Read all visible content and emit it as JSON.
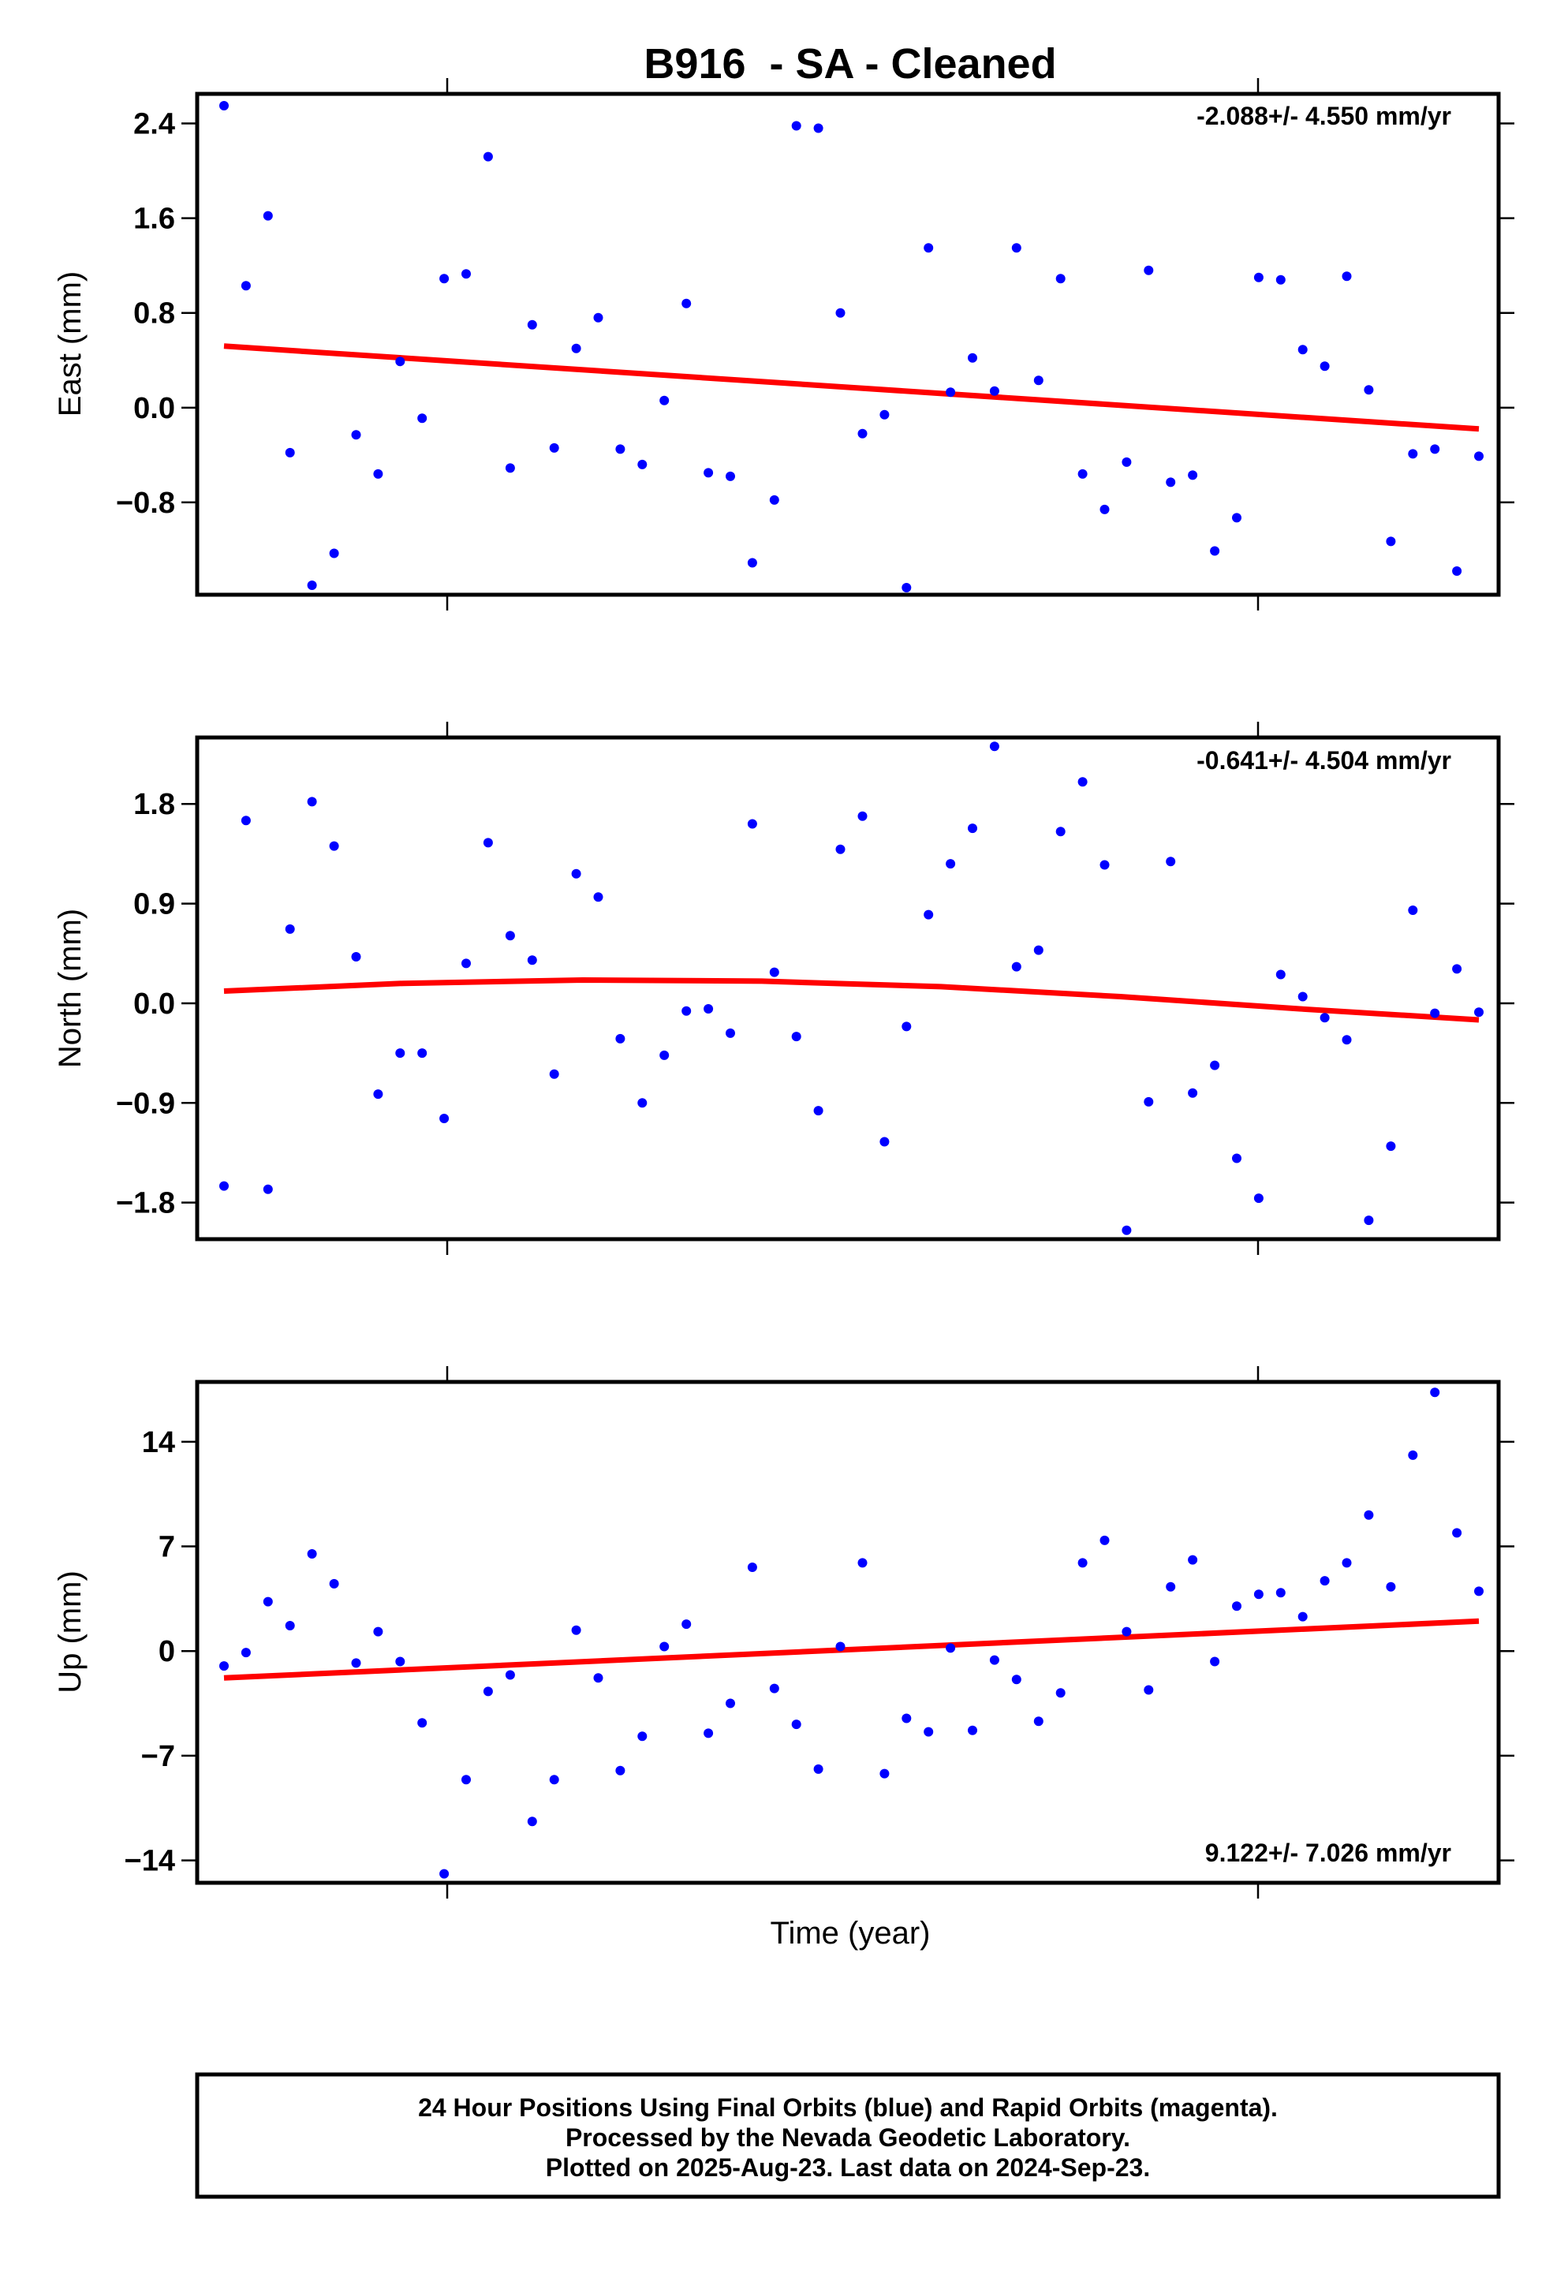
{
  "chart_data": {
    "type": "scatter",
    "title": "B916  - SA - Cleaned",
    "xlabel": "Time (year)",
    "panels": [
      {
        "name": "east",
        "ylabel": "East (mm)",
        "ylim": [
          -1.58,
          2.65
        ],
        "yticks": [
          2.4,
          1.6,
          0.8,
          0.0,
          -0.8
        ],
        "ytick_labels": [
          "2.4",
          "1.6",
          "0.8",
          "0.0",
          "−0.8"
        ],
        "rate_label": "-2.088+/- 4.550 mm/yr",
        "rate_position": "top-right",
        "points": [
          2.55,
          1.03,
          1.62,
          -0.38,
          -1.5,
          -1.23,
          -0.23,
          -0.56,
          0.39,
          -0.09,
          1.09,
          1.13,
          2.12,
          -0.51,
          0.7,
          -0.34,
          0.5,
          0.76,
          -0.35,
          -0.48,
          0.06,
          0.88,
          -0.55,
          -0.58,
          -1.31,
          -0.78,
          2.38,
          2.36,
          0.8,
          -0.22,
          -0.06,
          -1.52,
          1.35,
          0.13,
          0.42,
          0.14,
          1.35,
          0.23,
          1.09,
          -0.56,
          -0.86,
          -0.46,
          1.16,
          -0.63,
          -0.57,
          -1.21,
          -0.93,
          1.1,
          1.08,
          0.49,
          0.35,
          1.11,
          0.15,
          -1.13,
          -0.39,
          -0.35,
          -1.38,
          -0.41
        ],
        "trend": [
          0.52,
          -0.18
        ]
      },
      {
        "name": "north",
        "ylabel": "North (mm)",
        "ylim": [
          -2.13,
          2.4
        ],
        "yticks": [
          1.8,
          0.9,
          0.0,
          -0.9,
          -1.8
        ],
        "ytick_labels": [
          "1.8",
          "0.9",
          "0.0",
          "−0.9",
          "−1.8"
        ],
        "rate_label": "-0.641+/- 4.504 mm/yr",
        "rate_position": "top-right",
        "points": [
          -1.65,
          1.65,
          -1.68,
          0.67,
          1.82,
          1.42,
          0.42,
          -0.82,
          -0.45,
          -0.45,
          -1.04,
          0.36,
          1.45,
          0.61,
          0.39,
          -0.64,
          1.17,
          0.96,
          -0.32,
          -0.9,
          -0.47,
          -0.07,
          -0.05,
          -0.27,
          1.62,
          0.28,
          -0.3,
          -0.97,
          1.39,
          1.69,
          -1.25,
          -0.21,
          0.8,
          1.26,
          1.58,
          2.32,
          0.33,
          0.48,
          1.55,
          2.0,
          1.25,
          -2.05,
          -0.89,
          1.28,
          -0.81,
          -0.56,
          -1.4,
          -1.76,
          0.26,
          0.06,
          -0.13,
          -0.33,
          -1.96,
          -1.29,
          0.84,
          -0.09,
          0.31,
          -0.08
        ],
        "trend": [
          0.11,
          0.18,
          0.21,
          0.2,
          0.15,
          0.06,
          -0.05,
          -0.15
        ]
      },
      {
        "name": "up",
        "ylabel": "Up (mm)",
        "ylim": [
          -15.5,
          18.0
        ],
        "yticks": [
          14,
          7,
          0,
          -7,
          -14
        ],
        "ytick_labels": [
          "14",
          "7",
          "0",
          "−7",
          "−14"
        ],
        "rate_label": "9.122+/- 7.026 mm/yr",
        "rate_position": "bottom-right",
        "points": [
          -1.0,
          -0.1,
          3.3,
          1.7,
          6.5,
          4.5,
          -0.8,
          1.3,
          -0.7,
          -4.8,
          -14.9,
          -8.6,
          -2.7,
          -1.6,
          -11.4,
          -8.6,
          1.4,
          -1.8,
          -8.0,
          -5.7,
          0.3,
          1.8,
          -5.5,
          -3.5,
          5.6,
          -2.5,
          -4.9,
          -7.9,
          0.3,
          5.9,
          -8.2,
          -4.5,
          -5.4,
          0.2,
          -5.3,
          -0.6,
          -1.9,
          -4.7,
          -2.8,
          5.9,
          7.4,
          1.3,
          -2.6,
          4.3,
          6.1,
          -0.7,
          3.0,
          3.8,
          3.9,
          2.3,
          4.7,
          5.9,
          9.1,
          4.3,
          13.1,
          17.3,
          7.9,
          4.0
        ],
        "trend": [
          -1.8,
          2.0
        ]
      }
    ],
    "footer": {
      "line1": "24 Hour Positions Using Final Orbits (blue) and Rapid Orbits (magenta).",
      "line2": "Processed by the Nevada Geodetic Laboratory.",
      "line3": "Plotted on 2025-Aug-23. Last data on 2024-Sep-23."
    },
    "colors": {
      "final_orbits": "#0000ff",
      "trend": "#ff0000",
      "frame": "#000000"
    },
    "grid": false
  }
}
